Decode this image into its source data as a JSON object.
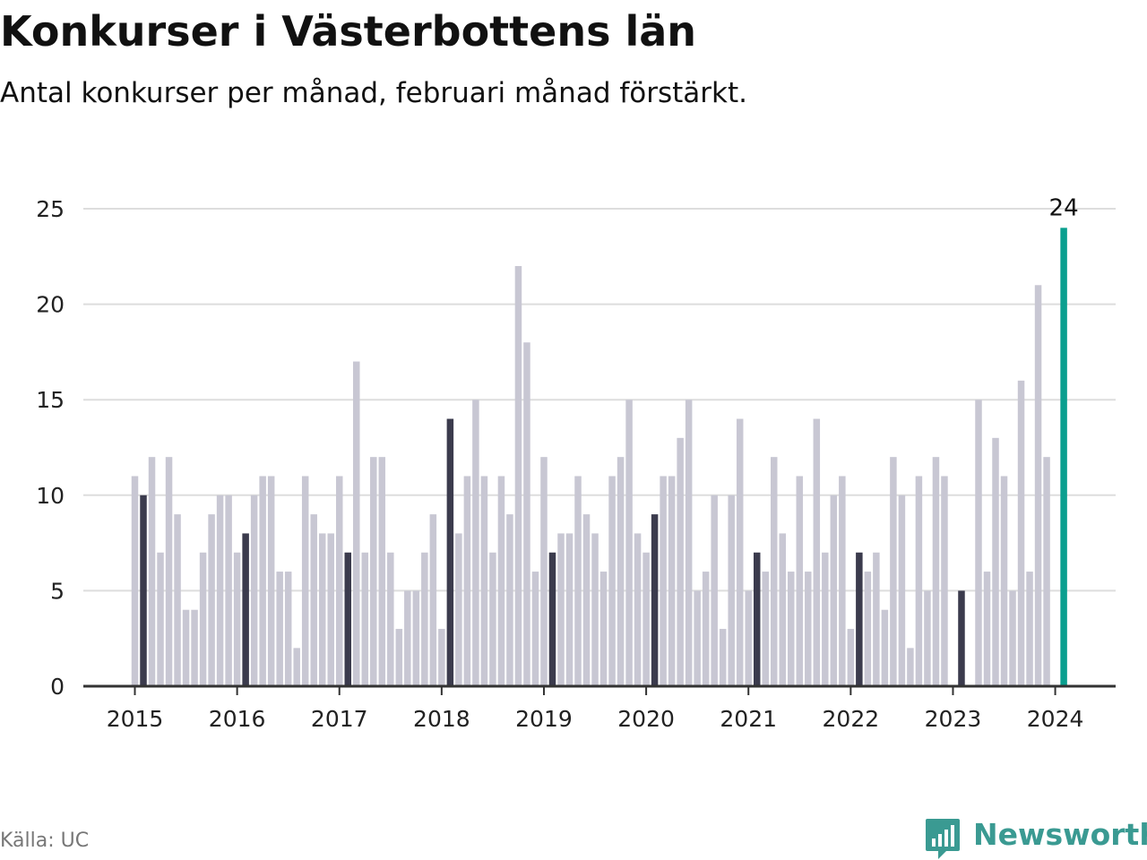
{
  "header": {
    "title": "Konkurser i Västerbottens län",
    "subtitle": "Antal konkurser per månad, februari månad förstärkt."
  },
  "footer": {
    "source": "Källa: UC",
    "brand": "Newsworthy",
    "brand_icon": "bar-chart-speech-bubble-icon"
  },
  "colors": {
    "bar": "#c8c7d3",
    "highlight": "#3b3b4d",
    "latest": "#0a9f8f",
    "grid": "#dddddd",
    "axis": "#333333",
    "brand": "#3a9a92"
  },
  "chart_data": {
    "type": "bar",
    "title": "Konkurser i Västerbottens län",
    "subtitle": "Antal konkurser per månad, februari månad förstärkt.",
    "xlabel": "",
    "ylabel": "",
    "ylim": [
      0,
      25
    ],
    "yticks": [
      0,
      5,
      10,
      15,
      20,
      25
    ],
    "grid": true,
    "legend": "none",
    "x_tick_labels": [
      "2015",
      "2016",
      "2017",
      "2018",
      "2019",
      "2020",
      "2021",
      "2022",
      "2023",
      "2024"
    ],
    "x_start": "2015-01",
    "x_end": "2024-02",
    "highlight_month": "February",
    "values": [
      11,
      10,
      12,
      7,
      12,
      9,
      4,
      4,
      7,
      9,
      10,
      10,
      7,
      8,
      10,
      11,
      11,
      6,
      6,
      2,
      11,
      9,
      8,
      8,
      11,
      7,
      17,
      7,
      12,
      12,
      7,
      3,
      5,
      5,
      7,
      9,
      3,
      14,
      8,
      11,
      15,
      11,
      7,
      11,
      9,
      22,
      18,
      6,
      12,
      7,
      8,
      8,
      11,
      9,
      8,
      6,
      11,
      12,
      15,
      8,
      7,
      9,
      11,
      11,
      13,
      15,
      5,
      6,
      10,
      3,
      10,
      14,
      5,
      7,
      6,
      12,
      8,
      6,
      11,
      6,
      14,
      7,
      10,
      11,
      3,
      7,
      6,
      7,
      4,
      12,
      10,
      2,
      11,
      5,
      12,
      11,
      0,
      5,
      0,
      15,
      6,
      13,
      11,
      5,
      16,
      6,
      21,
      12,
      0,
      24
    ],
    "annotations": [
      {
        "x": "2024-02",
        "text": "24"
      }
    ]
  }
}
